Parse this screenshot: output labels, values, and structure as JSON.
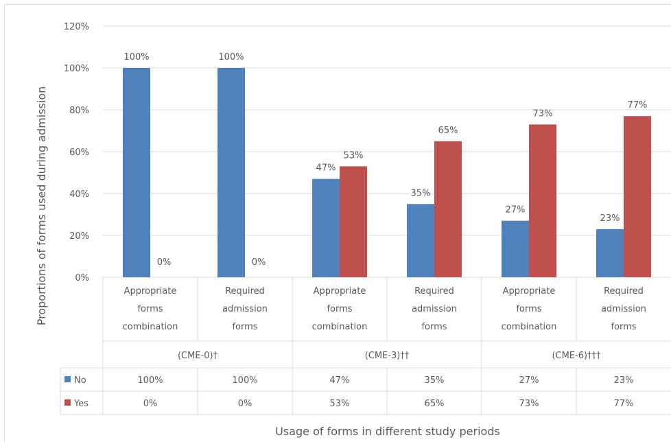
{
  "chart_data": {
    "type": "bar",
    "ylabel": "Proportions of forms used during admission",
    "xlabel": "Usage of forms in different study periods",
    "ylim": [
      0,
      120
    ],
    "yticks": [
      "0%",
      "20%",
      "40%",
      "60%",
      "80%",
      "100%",
      "120%"
    ],
    "grid": true,
    "legend": "data-table",
    "categories": [
      [
        "Appropriate",
        "forms",
        "combination"
      ],
      [
        "Required",
        "admission",
        "forms"
      ],
      [
        "Appropriate",
        "forms",
        "combination"
      ],
      [
        "Required",
        "admission",
        "forms"
      ],
      [
        "Appropriate",
        "forms",
        "combination"
      ],
      [
        "Required",
        "admission",
        "forms"
      ]
    ],
    "groups": [
      "(CME-0)†",
      "(CME-3)††",
      "(CME-6)†††"
    ],
    "series": [
      {
        "name": "No",
        "color": "#4f81bd",
        "values": [
          100,
          100,
          47,
          35,
          27,
          23
        ],
        "labels": [
          "100%",
          "100%",
          "47%",
          "35%",
          "27%",
          "23%"
        ]
      },
      {
        "name": "Yes",
        "color": "#c0504d",
        "values": [
          0,
          0,
          53,
          65,
          73,
          77
        ],
        "labels": [
          "0%",
          "0%",
          "53%",
          "65%",
          "73%",
          "77%"
        ]
      }
    ]
  }
}
